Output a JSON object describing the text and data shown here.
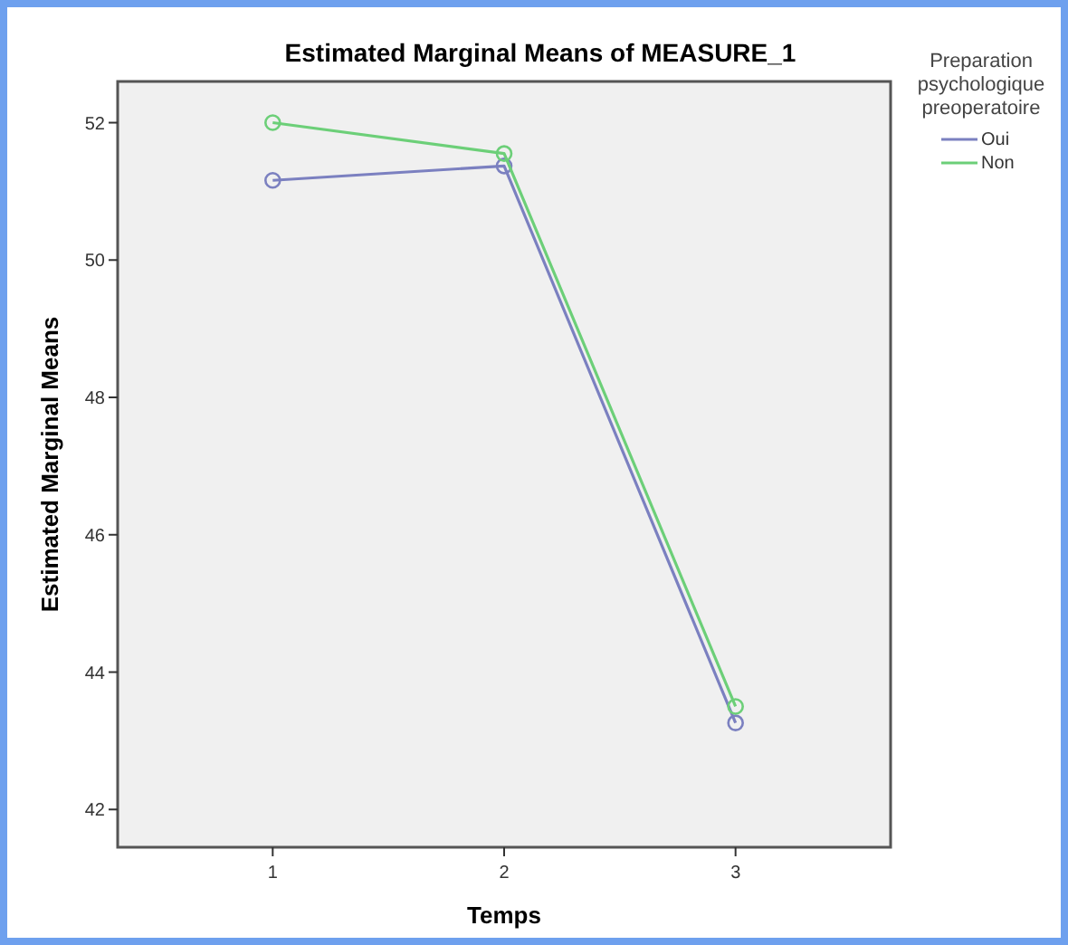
{
  "chart_data": {
    "type": "line",
    "title": "Estimated Marginal Means of MEASURE_1",
    "xlabel": "Temps",
    "ylabel": "Estimated Marginal Means",
    "legend_title": "Preparation psychologique preoperatoire",
    "categories": [
      "1",
      "2",
      "3"
    ],
    "series": [
      {
        "name": "Oui",
        "color": "#7b80c0",
        "values": [
          51.16,
          51.37,
          43.26
        ]
      },
      {
        "name": "Non",
        "color": "#6ccf78",
        "values": [
          52.0,
          51.55,
          43.5
        ]
      }
    ],
    "ylim": [
      41.45,
      52.6
    ],
    "yticks": [
      42,
      44,
      46,
      48,
      50,
      52
    ],
    "grid": false,
    "legend": "top right",
    "marker": "circle",
    "line_style": "solid"
  }
}
